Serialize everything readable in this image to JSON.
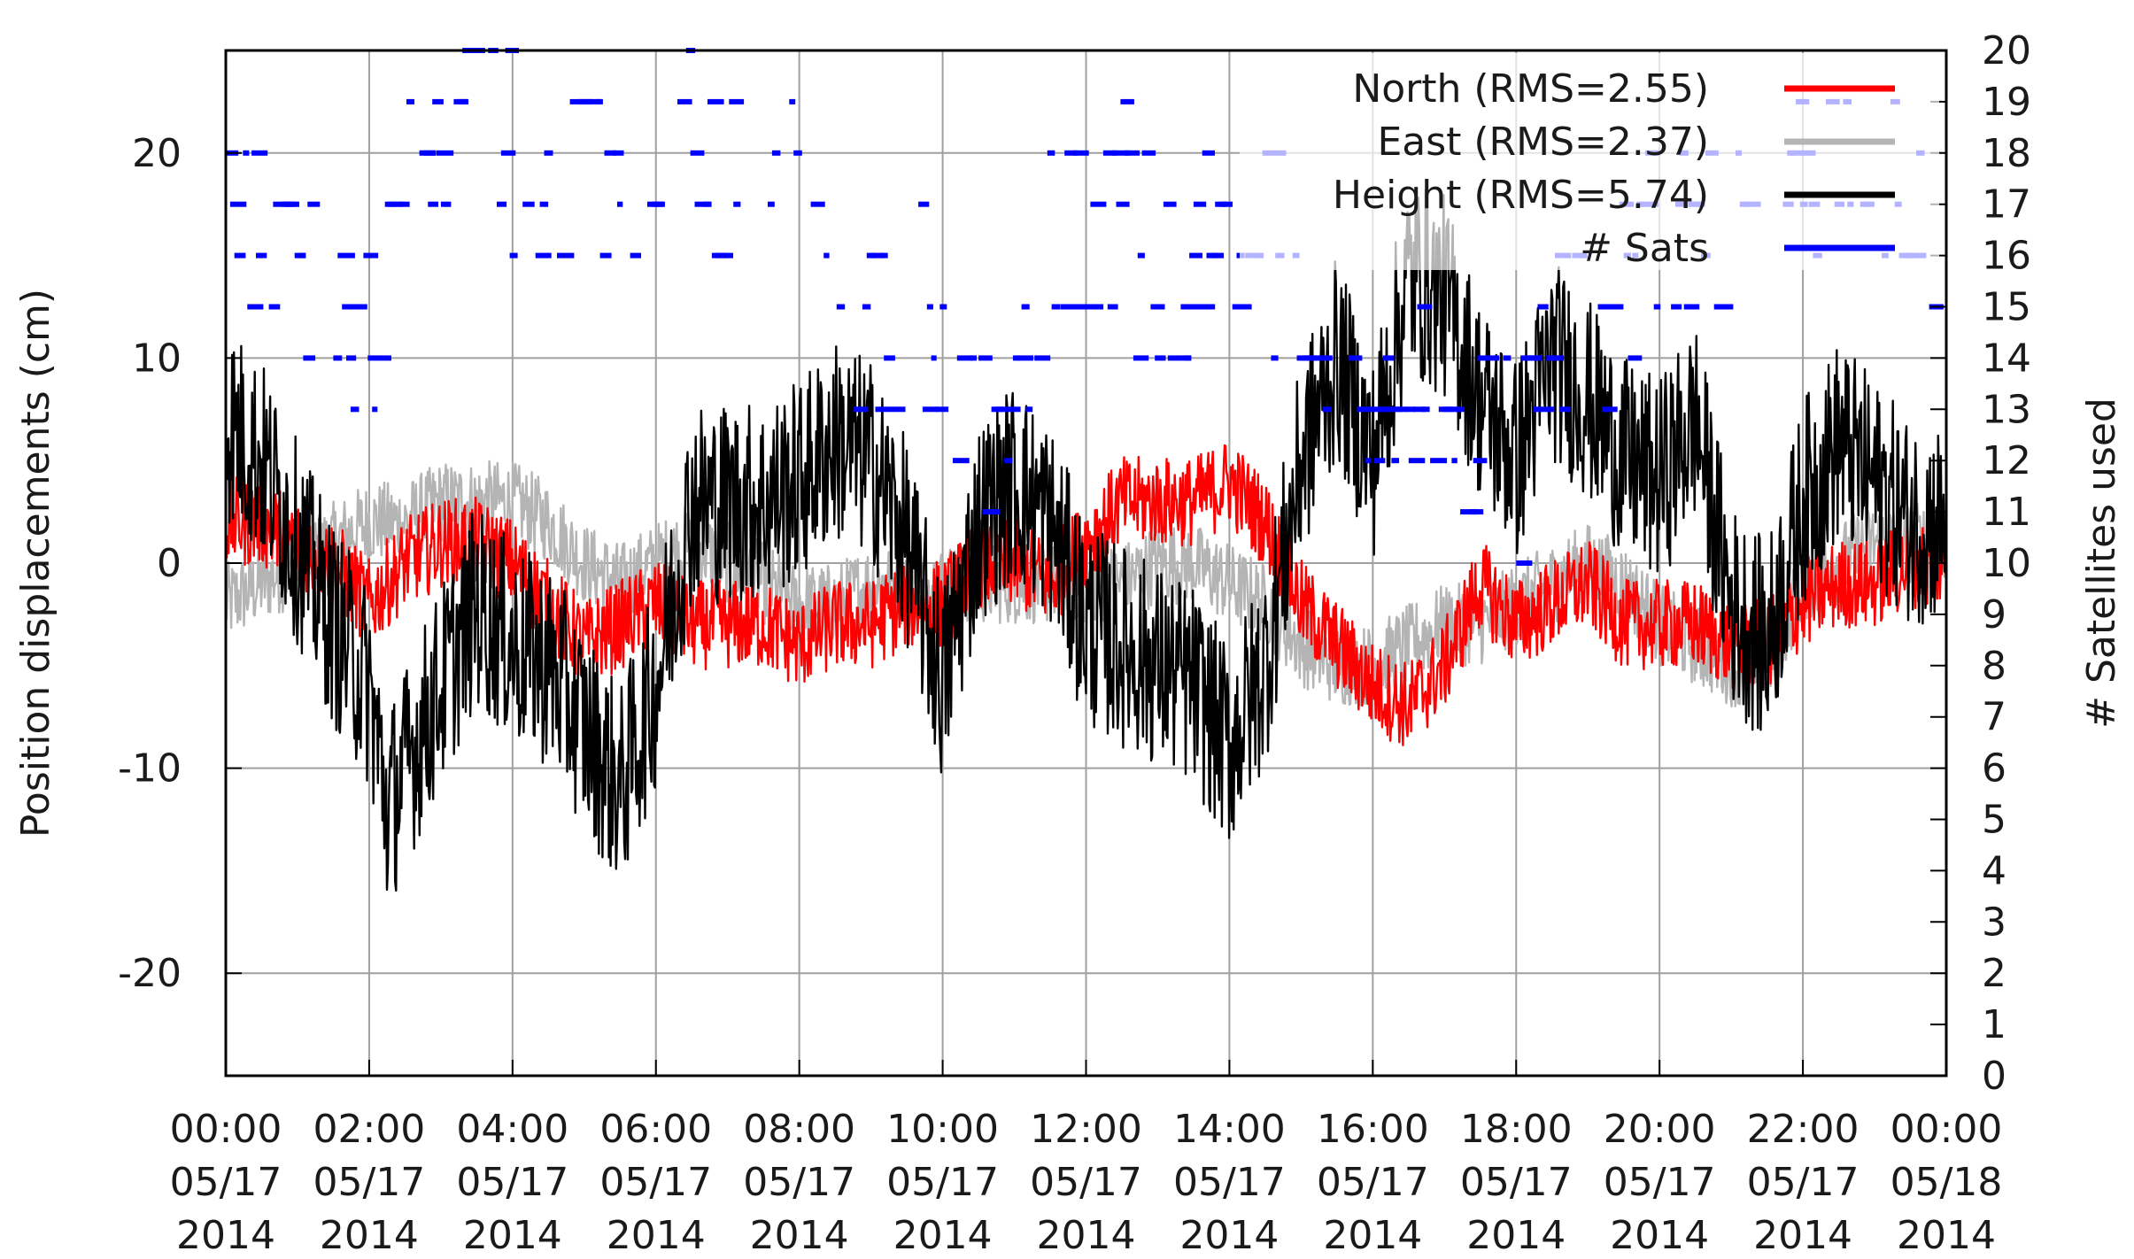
{
  "chart_data": {
    "type": "line",
    "title": "",
    "xlabel": "",
    "ylabel": "Position displacements (cm)",
    "y2label": "# Satellites used",
    "xlim": [
      "2014-05-17 00:00",
      "2014-05-18 00:00"
    ],
    "x_ticks": [
      {
        "time": "00:00",
        "date": "05/17",
        "year": "2014"
      },
      {
        "time": "02:00",
        "date": "05/17",
        "year": "2014"
      },
      {
        "time": "04:00",
        "date": "05/17",
        "year": "2014"
      },
      {
        "time": "06:00",
        "date": "05/17",
        "year": "2014"
      },
      {
        "time": "08:00",
        "date": "05/17",
        "year": "2014"
      },
      {
        "time": "10:00",
        "date": "05/17",
        "year": "2014"
      },
      {
        "time": "12:00",
        "date": "05/17",
        "year": "2014"
      },
      {
        "time": "14:00",
        "date": "05/17",
        "year": "2014"
      },
      {
        "time": "16:00",
        "date": "05/17",
        "year": "2014"
      },
      {
        "time": "18:00",
        "date": "05/17",
        "year": "2014"
      },
      {
        "time": "20:00",
        "date": "05/17",
        "year": "2014"
      },
      {
        "time": "22:00",
        "date": "05/17",
        "year": "2014"
      },
      {
        "time": "00:00",
        "date": "05/18",
        "year": "2014"
      }
    ],
    "ylim": [
      -25,
      25
    ],
    "y_ticks": [
      "-20",
      "-10",
      "0",
      "10",
      "20"
    ],
    "y2lim": [
      0,
      20
    ],
    "y2_ticks": [
      "0",
      "1",
      "2",
      "3",
      "4",
      "5",
      "6",
      "7",
      "8",
      "9",
      "10",
      "11",
      "12",
      "13",
      "14",
      "15",
      "16",
      "17",
      "18",
      "19",
      "20"
    ],
    "grid": true,
    "legend_position": "top-right",
    "legend": [
      {
        "label": "North (RMS=2.55)",
        "color": "#ff0000"
      },
      {
        "label": "East (RMS=2.37)",
        "color": "#b4b4b4"
      },
      {
        "label": "Height (RMS=5.74)",
        "color": "#000000"
      },
      {
        "label": "# Sats",
        "color": "#0000ff"
      }
    ],
    "series": [
      {
        "name": "North (RMS=2.55)",
        "color": "#ff0000",
        "axis": "left",
        "x_hours": [
          0,
          0.5,
          1,
          1.5,
          2,
          2.5,
          3,
          3.5,
          4,
          4.5,
          5,
          5.5,
          6,
          6.5,
          7,
          7.5,
          8,
          8.5,
          9,
          9.5,
          10,
          10.5,
          11,
          11.5,
          12,
          12.5,
          13,
          13.5,
          14,
          14.5,
          15,
          15.5,
          16,
          16.5,
          17,
          17.5,
          18,
          18.5,
          19,
          19.5,
          20,
          20.5,
          21,
          21.5,
          22,
          22.5,
          23,
          23.5
        ],
        "values": [
          2,
          2,
          1,
          0,
          -2,
          0,
          1,
          1,
          0,
          -2,
          -4,
          -3,
          -2,
          -3,
          -3,
          -3,
          -4,
          -3,
          -3,
          -2,
          -2,
          0,
          0,
          -1,
          1,
          3,
          3,
          3,
          4,
          2,
          -2,
          -4,
          -6,
          -7,
          -5,
          -1,
          -3,
          -2,
          -1,
          -3,
          -3,
          -3,
          -4,
          -4,
          -2,
          -1,
          -1,
          0
        ],
        "noise": 2.2
      },
      {
        "name": "East (RMS=2.37)",
        "color": "#b4b4b4",
        "axis": "left",
        "x_hours": [
          0,
          0.5,
          1,
          1.5,
          2,
          2.5,
          3,
          3.5,
          4,
          4.5,
          5,
          5.5,
          6,
          6.5,
          7,
          7.5,
          8,
          8.5,
          9,
          9.5,
          10,
          10.5,
          11,
          11.5,
          12,
          12.5,
          13,
          13.5,
          14,
          14.5,
          15,
          15.5,
          16,
          16.5,
          17,
          17.5,
          18,
          18.5,
          19,
          19.5,
          20,
          20.5,
          21,
          21.5,
          22,
          22.5,
          23,
          23.5
        ],
        "values": [
          -2,
          -1,
          0,
          1,
          2,
          2,
          3,
          3,
          3,
          2,
          0,
          -1,
          0,
          1,
          0,
          -1,
          -2,
          -2,
          -1,
          -1,
          -1,
          -1,
          -1,
          -1,
          -1,
          -1,
          0,
          0,
          -1,
          -2,
          -4,
          -5,
          -5,
          -4,
          -3,
          -3,
          -2,
          -1,
          0,
          -1,
          -3,
          -4,
          -5,
          -5,
          -1,
          0,
          1,
          1
        ],
        "noise": 2.0
      },
      {
        "name": "Height (RMS=5.74)",
        "color": "#000000",
        "axis": "left",
        "x_hours": [
          0,
          0.5,
          1,
          1.5,
          2,
          2.25,
          2.5,
          3,
          3.5,
          4,
          4.5,
          5,
          5.5,
          6,
          6.5,
          7,
          7.5,
          8,
          8.5,
          9,
          9.5,
          10,
          10.5,
          11,
          11.5,
          12,
          12.5,
          13,
          13.5,
          14,
          14.5,
          15,
          15.5,
          16,
          16.5,
          17,
          17.5,
          18,
          18.5,
          19,
          19.5,
          20,
          20.5,
          21,
          21.5,
          22,
          22.5,
          23,
          23.5
        ],
        "values": [
          7,
          5,
          1,
          -3,
          -6,
          -12,
          -10,
          -6,
          -2,
          -4,
          -5,
          -8,
          -11,
          -6,
          3,
          3,
          3,
          4,
          6,
          5,
          1,
          -6,
          2,
          4,
          2,
          -3,
          -4,
          -5,
          -6,
          -9,
          -5,
          5,
          10,
          5,
          14,
          13,
          8,
          5,
          10,
          8,
          5,
          4,
          7,
          -2,
          -4,
          3,
          6,
          4,
          2
        ],
        "noise": 5.0
      },
      {
        "name": "# Sats",
        "color": "#0000ff",
        "axis": "right",
        "x_hours": [
          0,
          0.5,
          1,
          1.5,
          2,
          2.5,
          3,
          3.5,
          4,
          4.5,
          5,
          5.5,
          6,
          6.5,
          7,
          7.5,
          8,
          8.5,
          9,
          9.5,
          10,
          10.5,
          11,
          11.5,
          12,
          12.5,
          13,
          13.5,
          14,
          14.5,
          15,
          15.5,
          16,
          16.5,
          17,
          17.5,
          18,
          18.5,
          19,
          19.5,
          20,
          20.5,
          21,
          21.5,
          22,
          22.5,
          23,
          23.5
        ],
        "values": [
          17,
          16,
          15,
          15,
          14,
          17,
          18,
          19,
          18,
          17,
          18,
          17,
          17,
          19,
          17,
          16,
          17,
          15,
          14,
          15,
          14,
          13,
          15,
          16,
          16,
          17,
          15,
          16,
          17,
          16,
          15,
          15,
          14,
          13,
          13,
          13,
          12,
          15,
          14,
          15,
          17,
          16,
          17,
          17,
          18,
          19,
          18,
          17
        ],
        "spread": 2
      }
    ]
  }
}
